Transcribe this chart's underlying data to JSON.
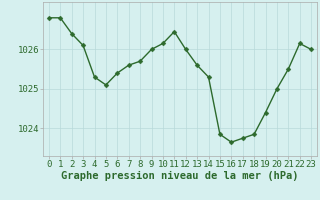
{
  "x": [
    0,
    1,
    2,
    3,
    4,
    5,
    6,
    7,
    8,
    9,
    10,
    11,
    12,
    13,
    14,
    15,
    16,
    17,
    18,
    19,
    20,
    21,
    22,
    23
  ],
  "y": [
    1026.8,
    1026.8,
    1026.4,
    1026.1,
    1025.3,
    1025.1,
    1025.4,
    1025.6,
    1025.7,
    1026.0,
    1026.15,
    1026.45,
    1026.0,
    1025.6,
    1025.3,
    1023.85,
    1023.65,
    1023.75,
    1023.85,
    1024.4,
    1025.0,
    1025.5,
    1026.15,
    1026.0
  ],
  "line_color": "#2d6a2d",
  "marker_color": "#2d6a2d",
  "bg_color": "#d6f0ef",
  "grid_color": "#b8dada",
  "axis_color": "#aaaaaa",
  "text_color": "#2d6a2d",
  "ylabel_ticks": [
    1024,
    1025,
    1026
  ],
  "ylim": [
    1023.3,
    1027.2
  ],
  "xlim": [
    -0.5,
    23.5
  ],
  "xlabel": "Graphe pression niveau de la mer (hPa)",
  "marker_size": 2.5,
  "line_width": 1.0,
  "font_size_tick": 6.5,
  "font_size_label": 7.5
}
